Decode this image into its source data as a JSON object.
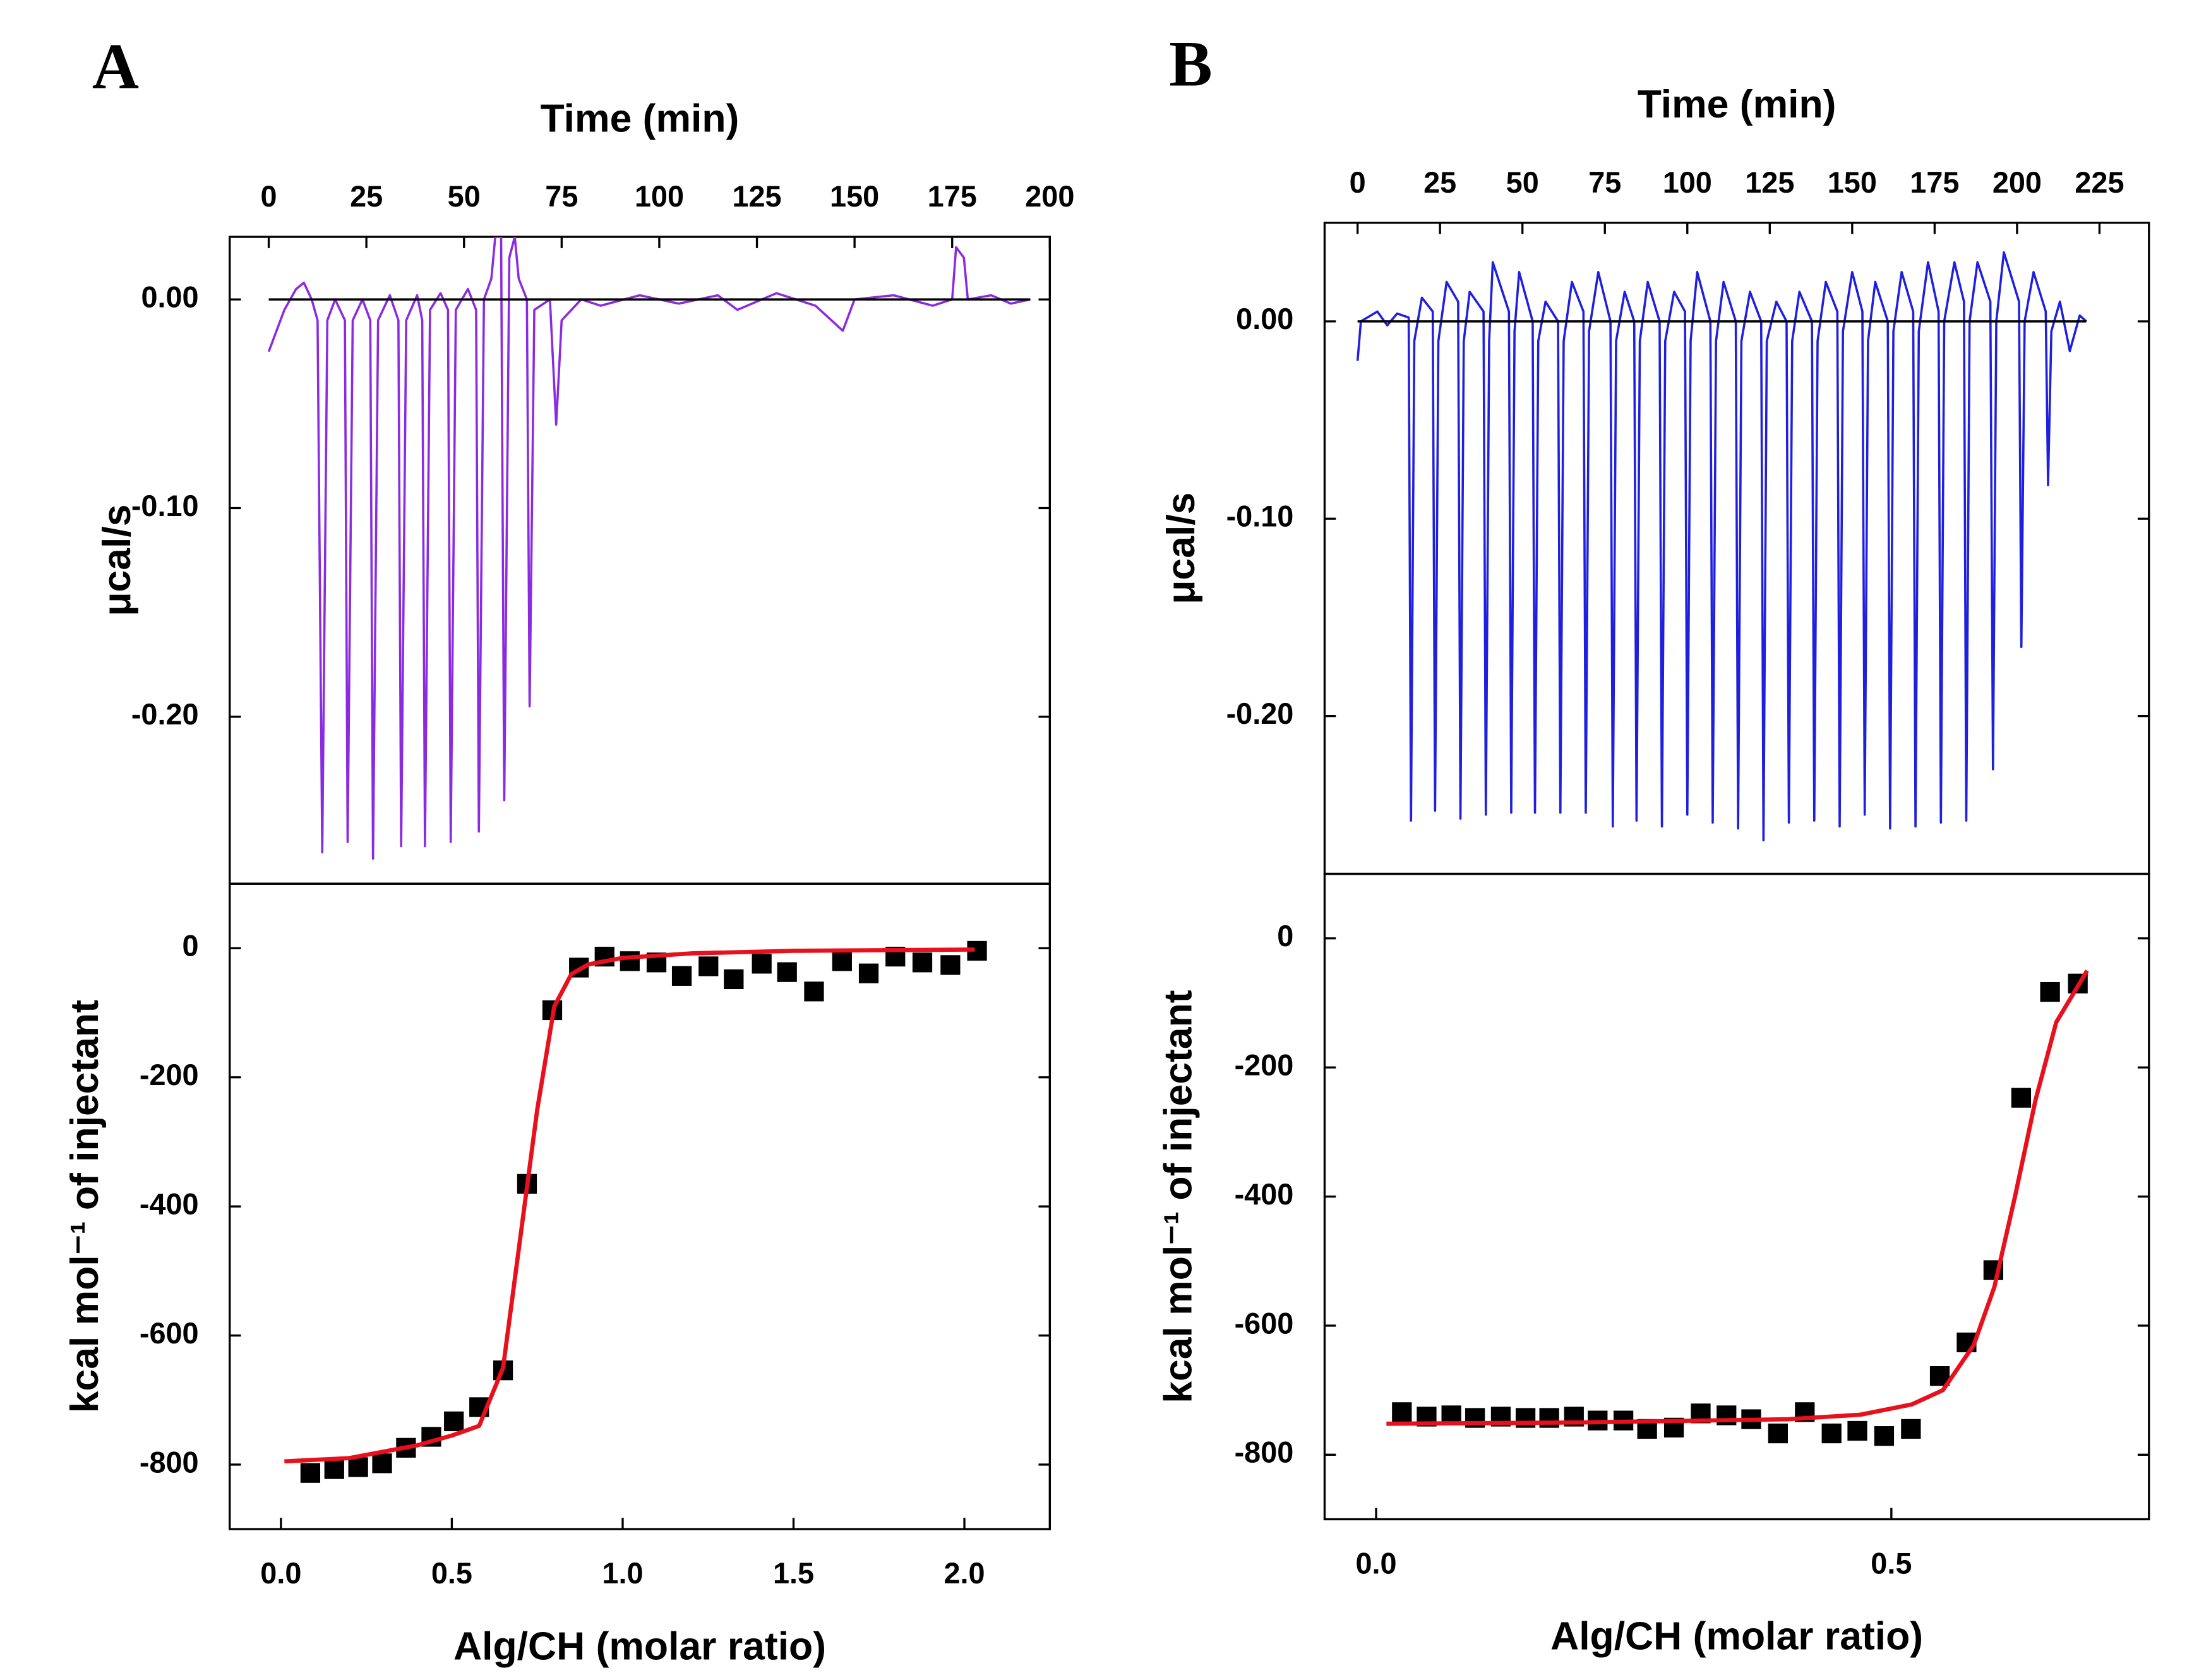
{
  "chart_data": [
    {
      "type": "line",
      "panel": "A",
      "x_label": "Time (min)",
      "x_axis_position": "top",
      "y_label": "μcal/s",
      "xlim": [
        -10,
        200
      ],
      "ylim": [
        -0.28,
        0.03
      ],
      "xticks": [
        0,
        25,
        50,
        75,
        100,
        125,
        150,
        175,
        200
      ],
      "yticks": [
        {
          "value": 0,
          "label": "0.00"
        },
        {
          "value": -0.1,
          "label": "-0.10"
        },
        {
          "value": -0.2,
          "label": "-0.20"
        }
      ],
      "series": [
        {
          "color": "#8a2be2",
          "style": "line",
          "x": [
            0,
            2,
            4,
            7,
            9,
            11,
            12.5,
            13.7,
            15,
            17,
            19.5,
            20.2,
            21.5,
            24,
            26,
            26.7,
            28,
            31,
            33.2,
            33.9,
            35.2,
            38,
            39.3,
            40,
            41.3,
            44,
            45.9,
            46.6,
            47.9,
            51,
            53.1,
            53.8,
            55.1,
            57,
            58,
            59.5,
            60.3,
            61.6,
            63,
            64,
            66.1,
            66.8,
            68,
            72,
            73.6,
            75,
            80,
            85,
            95,
            105,
            115,
            120,
            130,
            140,
            147,
            150,
            160,
            170,
            175,
            176,
            178,
            179,
            185,
            190,
            195
          ],
          "values": [
            -0.025,
            -0.015,
            -0.005,
            0.005,
            0.008,
            0,
            -0.01,
            -0.265,
            -0.01,
            0,
            -0.01,
            -0.26,
            -0.01,
            0,
            -0.01,
            -0.268,
            -0.01,
            0.002,
            -0.01,
            -0.262,
            -0.01,
            0.002,
            -0.01,
            -0.262,
            -0.005,
            0.003,
            -0.005,
            -0.26,
            -0.005,
            0.005,
            -0.005,
            -0.255,
            0,
            0.01,
            0.03,
            0.03,
            -0.24,
            0.02,
            0.03,
            0.01,
            0,
            -0.195,
            -0.005,
            0,
            -0.06,
            -0.01,
            0,
            -0.003,
            0.002,
            -0.002,
            0.002,
            -0.005,
            0.003,
            -0.003,
            -0.015,
            0,
            0.002,
            -0.003,
            0,
            0.025,
            0.02,
            0,
            0.002,
            -0.002,
            0
          ]
        },
        {
          "color": "#000000",
          "style": "line",
          "x": [
            0,
            195
          ],
          "values": [
            0,
            0
          ]
        }
      ]
    },
    {
      "type": "scatter",
      "x_label": "Alg/CH (molar ratio)",
      "y_label": "kcal mol⁻¹ of injectant",
      "xlim": [
        -0.15,
        2.25
      ],
      "ylim": [
        -900,
        100
      ],
      "xticks": [
        {
          "value": 0,
          "label": "0.0"
        },
        {
          "value": 0.5,
          "label": "0.5"
        },
        {
          "value": 1,
          "label": "1.0"
        },
        {
          "value": 1.5,
          "label": "1.5"
        },
        {
          "value": 2,
          "label": "2.0"
        }
      ],
      "yticks": [
        -800,
        -600,
        -400,
        -200,
        0
      ],
      "series": [
        {
          "color": "#000000",
          "style": "markers",
          "marker": "square",
          "x": [
            0.086,
            0.156,
            0.226,
            0.296,
            0.366,
            0.44,
            0.506,
            0.58,
            0.65,
            0.72,
            0.794,
            0.872,
            0.947,
            1.021,
            1.099,
            1.173,
            1.251,
            1.325,
            1.407,
            1.481,
            1.56,
            1.642,
            1.72,
            1.798,
            1.877,
            1.959,
            2.037
          ],
          "values": [
            -813,
            -807,
            -804,
            -798,
            -774,
            -757,
            -733,
            -711,
            -654,
            -365,
            -96,
            -30,
            -13,
            -20,
            -22,
            -43,
            -28,
            -48,
            -24,
            -37,
            -67,
            -20,
            -39,
            -13,
            -22,
            -26,
            -4
          ]
        },
        {
          "color": "#e8101c",
          "style": "line",
          "x": [
            0.01,
            0.2,
            0.4,
            0.5,
            0.58,
            0.65,
            0.7,
            0.75,
            0.8,
            0.85,
            0.9,
            1.0,
            1.2,
            1.5,
            2.03
          ],
          "values": [
            -795,
            -790,
            -770,
            -755,
            -740,
            -650,
            -450,
            -250,
            -90,
            -40,
            -25,
            -15,
            -8,
            -4,
            -2
          ]
        }
      ]
    },
    {
      "type": "line",
      "panel": "B",
      "x_label": "Time (min)",
      "x_axis_position": "top",
      "y_label": "μcal/s",
      "xlim": [
        -10,
        240
      ],
      "ylim": [
        -0.28,
        0.05
      ],
      "xticks": [
        0,
        25,
        50,
        75,
        100,
        125,
        150,
        175,
        200,
        225
      ],
      "yticks": [
        {
          "value": 0,
          "label": "0.00"
        },
        {
          "value": -0.1,
          "label": "-0.10"
        },
        {
          "value": -0.2,
          "label": "-0.20"
        }
      ],
      "series": [
        {
          "color": "#1f1fe0",
          "style": "line",
          "x": [
            0,
            1,
            3,
            6,
            9,
            12,
            15.5,
            16.2,
            17.2,
            19.5,
            22.8,
            23.5,
            24.5,
            27,
            30.5,
            31.2,
            32.2,
            34,
            38.2,
            38.9,
            39.9,
            41,
            45.9,
            46.6,
            47.6,
            49,
            53.1,
            53.8,
            54.8,
            57,
            60.8,
            61.5,
            62.5,
            65,
            68.5,
            69.2,
            70.2,
            73,
            76.7,
            77.4,
            78.4,
            81,
            83.9,
            84.6,
            85.6,
            88,
            91.6,
            92.3,
            93.3,
            96,
            99.3,
            100,
            101,
            103,
            107,
            107.7,
            108.7,
            111,
            114.7,
            115.4,
            116.4,
            119,
            122.4,
            123.1,
            124.1,
            127,
            130.1,
            130.8,
            131.8,
            134,
            137.8,
            138.5,
            139.5,
            142,
            145.5,
            146.2,
            147.2,
            150,
            153.1,
            153.8,
            154.8,
            157,
            160.8,
            161.5,
            162.5,
            165,
            168.5,
            169.2,
            170.2,
            173,
            176.2,
            176.9,
            177.9,
            181,
            183.9,
            184.6,
            185.6,
            188,
            191.9,
            192.7,
            193.7,
            196,
            200.6,
            201.3,
            202.3,
            205,
            208.7,
            209.4,
            210.4,
            213,
            216,
            219,
            221
          ],
          "values": [
            -0.02,
            0,
            0.002,
            0.005,
            -0.002,
            0.004,
            0.002,
            -0.253,
            -0.01,
            0.012,
            0.005,
            -0.248,
            -0.01,
            0.02,
            0.01,
            -0.252,
            -0.01,
            0.015,
            0.005,
            -0.25,
            -0.01,
            0.03,
            0.005,
            -0.249,
            -0.005,
            0.025,
            0,
            -0.249,
            -0.01,
            0.01,
            0,
            -0.249,
            -0.01,
            0.02,
            0.005,
            -0.249,
            -0.005,
            0.025,
            0,
            -0.256,
            -0.01,
            0.015,
            0,
            -0.253,
            -0.01,
            0.02,
            0,
            -0.256,
            -0.01,
            0.015,
            0.005,
            -0.25,
            -0.01,
            0.025,
            0,
            -0.254,
            -0.01,
            0.02,
            0,
            -0.257,
            -0.01,
            0.015,
            0,
            -0.263,
            -0.01,
            0.01,
            0,
            -0.254,
            -0.01,
            0.015,
            0,
            -0.253,
            -0.01,
            0.02,
            0.005,
            -0.256,
            -0.005,
            0.025,
            0.005,
            -0.25,
            -0.01,
            0.02,
            0,
            -0.257,
            -0.005,
            0.025,
            0.005,
            -0.256,
            -0.005,
            0.03,
            0.005,
            -0.254,
            0,
            0.03,
            0.01,
            -0.253,
            0,
            0.03,
            0.01,
            -0.227,
            0,
            0.035,
            0.01,
            -0.165,
            0,
            0.025,
            0.005,
            -0.083,
            -0.005,
            0.01,
            -0.015,
            0.003,
            0
          ]
        },
        {
          "color": "#000000",
          "style": "line",
          "x": [
            0,
            221
          ],
          "values": [
            0,
            0
          ]
        }
      ]
    },
    {
      "type": "scatter",
      "x_label": "Alg/CH (molar ratio)",
      "y_label": "kcal mol⁻¹ of injectant",
      "xlim": [
        -0.05,
        0.75
      ],
      "ylim": [
        -900,
        100
      ],
      "xticks": [
        {
          "value": 0,
          "label": "0.0"
        },
        {
          "value": 0.5,
          "label": "0.5"
        }
      ],
      "yticks": [
        -800,
        -600,
        -400,
        -200,
        0
      ],
      "series": [
        {
          "color": "#000000",
          "style": "markers",
          "marker": "square",
          "x": [
            0.025,
            0.049,
            0.073,
            0.096,
            0.121,
            0.145,
            0.168,
            0.192,
            0.215,
            0.24,
            0.263,
            0.289,
            0.315,
            0.34,
            0.364,
            0.39,
            0.416,
            0.442,
            0.467,
            0.493,
            0.519,
            0.547,
            0.573,
            0.599,
            0.626,
            0.654,
            0.681
          ],
          "values": [
            -734,
            -741,
            -739,
            -743,
            -741,
            -743,
            -743,
            -741,
            -747,
            -747,
            -760,
            -758,
            -736,
            -739,
            -745,
            -767,
            -734,
            -767,
            -763,
            -771,
            -760,
            -678,
            -626,
            -514,
            -247,
            -83,
            -70
          ]
        },
        {
          "color": "#e8101c",
          "style": "line",
          "x": [
            0.01,
            0.2,
            0.4,
            0.47,
            0.52,
            0.55,
            0.58,
            0.6,
            0.62,
            0.64,
            0.66,
            0.69
          ],
          "values": [
            -752,
            -750,
            -745,
            -738,
            -722,
            -700,
            -630,
            -540,
            -400,
            -250,
            -130,
            -50
          ]
        }
      ]
    }
  ]
}
